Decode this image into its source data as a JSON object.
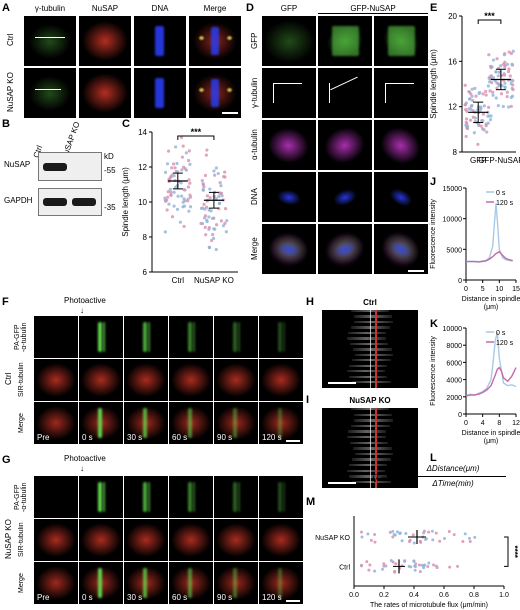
{
  "panels": {
    "A": "A",
    "B": "B",
    "C": "C",
    "D": "D",
    "E": "E",
    "F": "F",
    "G": "G",
    "H": "H",
    "I": "I",
    "J": "J",
    "K": "K",
    "L": "L",
    "M": "M"
  },
  "panelA": {
    "headers": [
      "γ-tubulin",
      "NuSAP",
      "DNA",
      "Merge"
    ],
    "rows": [
      "Ctrl",
      "NuSAP KO"
    ]
  },
  "panelB": {
    "lanes": [
      "Ctrl",
      "NuSAP KO"
    ],
    "bands": [
      "NuSAP",
      "GAPDH"
    ],
    "kd_label": "kD",
    "markers": [
      "-55",
      "-35"
    ]
  },
  "panelD": {
    "col_groups": [
      "GFP",
      "GFP-NuSAP"
    ],
    "rows": [
      "GFP",
      "γ-tubulin",
      "α-tubulin",
      "DNA",
      "Merge"
    ]
  },
  "panelF": {
    "title": "Photoactive",
    "condition": "Ctrl",
    "rows": [
      "PA-GFP\n-α-tubulin",
      "SIR-tubulin",
      "Merge"
    ],
    "times": [
      "Pre",
      "0 s",
      "30 s",
      "60 s",
      "90 s",
      "120 s"
    ]
  },
  "panelG": {
    "title": "Photoactive",
    "condition": "NuSAP KO",
    "rows": [
      "PA-GFP\n-α-tubulin",
      "SIR-tubulin",
      "Merge"
    ],
    "times": [
      "Pre",
      "0 s",
      "30 s",
      "60 s",
      "90 s",
      "120 s"
    ]
  },
  "panelH": {
    "title": "Ctrl"
  },
  "panelI": {
    "title": "NuSAP KO"
  },
  "panelL": {
    "lhs": "V̄ =",
    "num": "ΔDistance(μm)",
    "den": "ΔTime(min)"
  },
  "colors": {
    "zero": "#a9c9e6",
    "t120": "#c36aa8",
    "ctrl_dot": "#8fb4d9",
    "ko_dot": "#d98fb0",
    "green": "#5fd34a",
    "red": "#e03a2a",
    "blue": "#2a3cf0",
    "magenta": "#d13ad8"
  },
  "chart_data": [
    {
      "id": "C",
      "type": "scatter",
      "ylabel": "Spindle length (μm)",
      "yticks": [
        6,
        8,
        10,
        12,
        14
      ],
      "ylim": [
        6,
        14
      ],
      "categories": [
        "Ctrl",
        "NuSAP KO"
      ],
      "significance": "***",
      "series": [
        {
          "name": "Ctrl",
          "mean": 11.2,
          "sem": 0.15
        },
        {
          "name": "NuSAP KO",
          "mean": 10.1,
          "sem": 0.15
        }
      ]
    },
    {
      "id": "E",
      "type": "scatter",
      "ylabel": "Spindle length (μm)",
      "yticks": [
        8,
        12,
        16,
        20
      ],
      "ylim": [
        8,
        20
      ],
      "categories": [
        "GFP",
        "GFP-NuSAP"
      ],
      "significance": "***",
      "series": [
        {
          "name": "GFP",
          "mean": 11.5,
          "sem": 0.3
        },
        {
          "name": "GFP-NuSAP",
          "mean": 14.4,
          "sem": 0.3
        }
      ]
    },
    {
      "id": "J",
      "type": "line",
      "ylabel": "Fluorescence intensity",
      "xlabel": "Distance in spindle\n(μm)",
      "xticks": [
        0,
        5,
        10,
        15
      ],
      "yticks": [
        0,
        5000,
        10000,
        15000
      ],
      "xlim": [
        0,
        15
      ],
      "ylim": [
        0,
        15000
      ],
      "series": [
        {
          "name": "0 s",
          "x": [
            0,
            2,
            4,
            6,
            7,
            8,
            8.5,
            9,
            9.5,
            10,
            11,
            12,
            13,
            14
          ],
          "y": [
            3000,
            3050,
            3000,
            3200,
            3600,
            5500,
            9000,
            12500,
            9000,
            5000,
            3600,
            3300,
            3200,
            3100
          ]
        },
        {
          "name": "120 s",
          "x": [
            0,
            2,
            4,
            6,
            7,
            8,
            9,
            10,
            11,
            12,
            13,
            14
          ],
          "y": [
            3000,
            3000,
            2950,
            3100,
            3400,
            3800,
            4300,
            4600,
            4000,
            3500,
            3300,
            3200
          ]
        }
      ]
    },
    {
      "id": "K",
      "type": "line",
      "ylabel": "Fluorescence intensity",
      "xlabel": "Distance in spindle\n(μm)",
      "xticks": [
        0,
        4,
        8,
        12
      ],
      "yticks": [
        0,
        2000,
        4000,
        6000,
        8000,
        10000
      ],
      "xlim": [
        0,
        12
      ],
      "ylim": [
        0,
        10000
      ],
      "series": [
        {
          "name": "0 s",
          "x": [
            0,
            1,
            2,
            3,
            4,
            5,
            6,
            6.5,
            7,
            7.5,
            8,
            9,
            10,
            11,
            12
          ],
          "y": [
            2100,
            2300,
            2200,
            2400,
            2600,
            3000,
            4000,
            6000,
            8500,
            9500,
            6500,
            3600,
            3300,
            3400,
            3200
          ]
        },
        {
          "name": "120 s",
          "x": [
            0,
            1,
            2,
            3,
            4,
            5,
            6,
            7,
            7.5,
            8,
            8.5,
            9,
            10,
            11,
            12
          ],
          "y": [
            2100,
            2200,
            2200,
            2300,
            2500,
            2800,
            3300,
            4500,
            5200,
            5400,
            5000,
            4200,
            3800,
            4400,
            5400
          ]
        }
      ]
    },
    {
      "id": "M",
      "type": "scatter",
      "xlabel": "The rates of microtubule flux (μm/min)",
      "xticks": [
        "0.0",
        "0.2",
        "0.4",
        "0.6",
        "0.8",
        "1.0"
      ],
      "xlim": [
        0,
        1
      ],
      "categories": [
        "NuSAP KO",
        "Ctrl"
      ],
      "significance": "****",
      "series": [
        {
          "name": "NuSAP KO",
          "mean": 0.42,
          "sem": 0.03
        },
        {
          "name": "Ctrl",
          "mean": 0.3,
          "sem": 0.02
        }
      ]
    }
  ]
}
